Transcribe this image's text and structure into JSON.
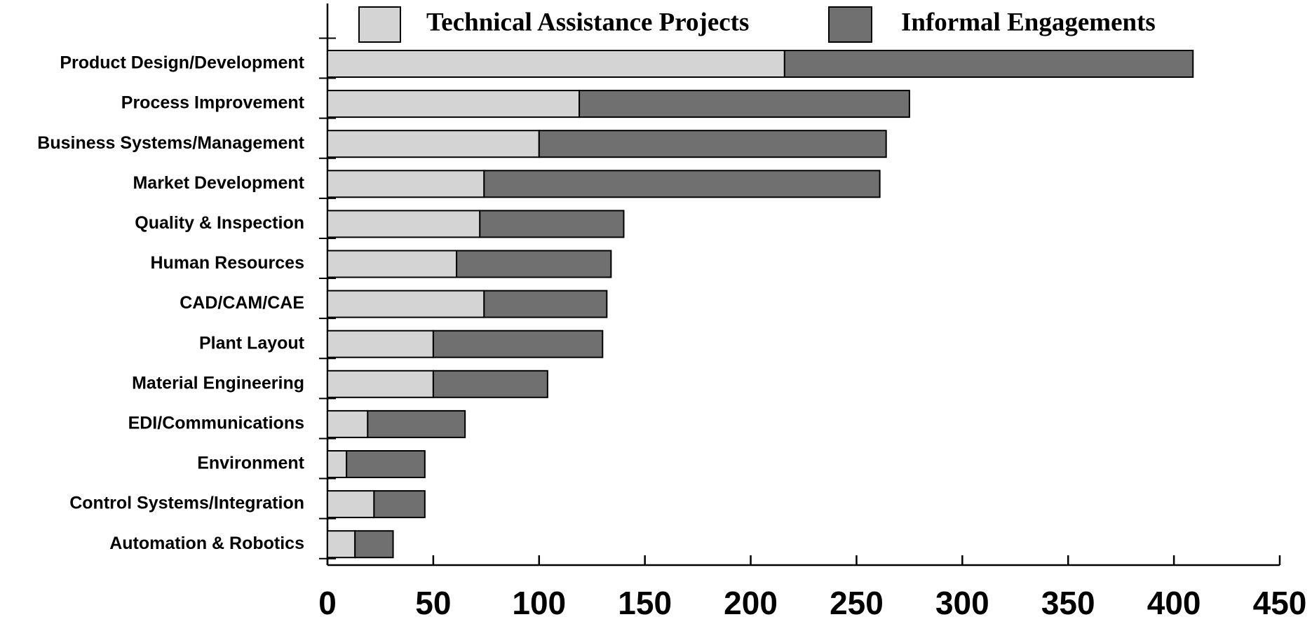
{
  "chart_data": {
    "type": "stacked_barh",
    "categories": [
      "Product Design/Development",
      "Process Improvement",
      "Business Systems/Management",
      "Market Development",
      "Quality & Inspection",
      "Human Resources",
      "CAD/CAM/CAE",
      "Plant Layout",
      "Material Engineering",
      "EDI/Communications",
      "Environment",
      "Control Systems/Integration",
      "Automation & Robotics"
    ],
    "series": [
      {
        "name": "Technical Assistance Projects",
        "color": "#d4d4d4",
        "values": [
          216,
          119,
          100,
          74,
          72,
          61,
          74,
          50,
          50,
          19,
          9,
          22,
          13
        ]
      },
      {
        "name": "Informal Engagements",
        "color": "#707070",
        "values": [
          193,
          156,
          164,
          187,
          68,
          73,
          58,
          80,
          54,
          46,
          37,
          24,
          18
        ]
      }
    ],
    "xlim": [
      0,
      450
    ],
    "xticks": [
      0,
      50,
      100,
      150,
      200,
      250,
      300,
      350,
      400,
      450
    ]
  }
}
